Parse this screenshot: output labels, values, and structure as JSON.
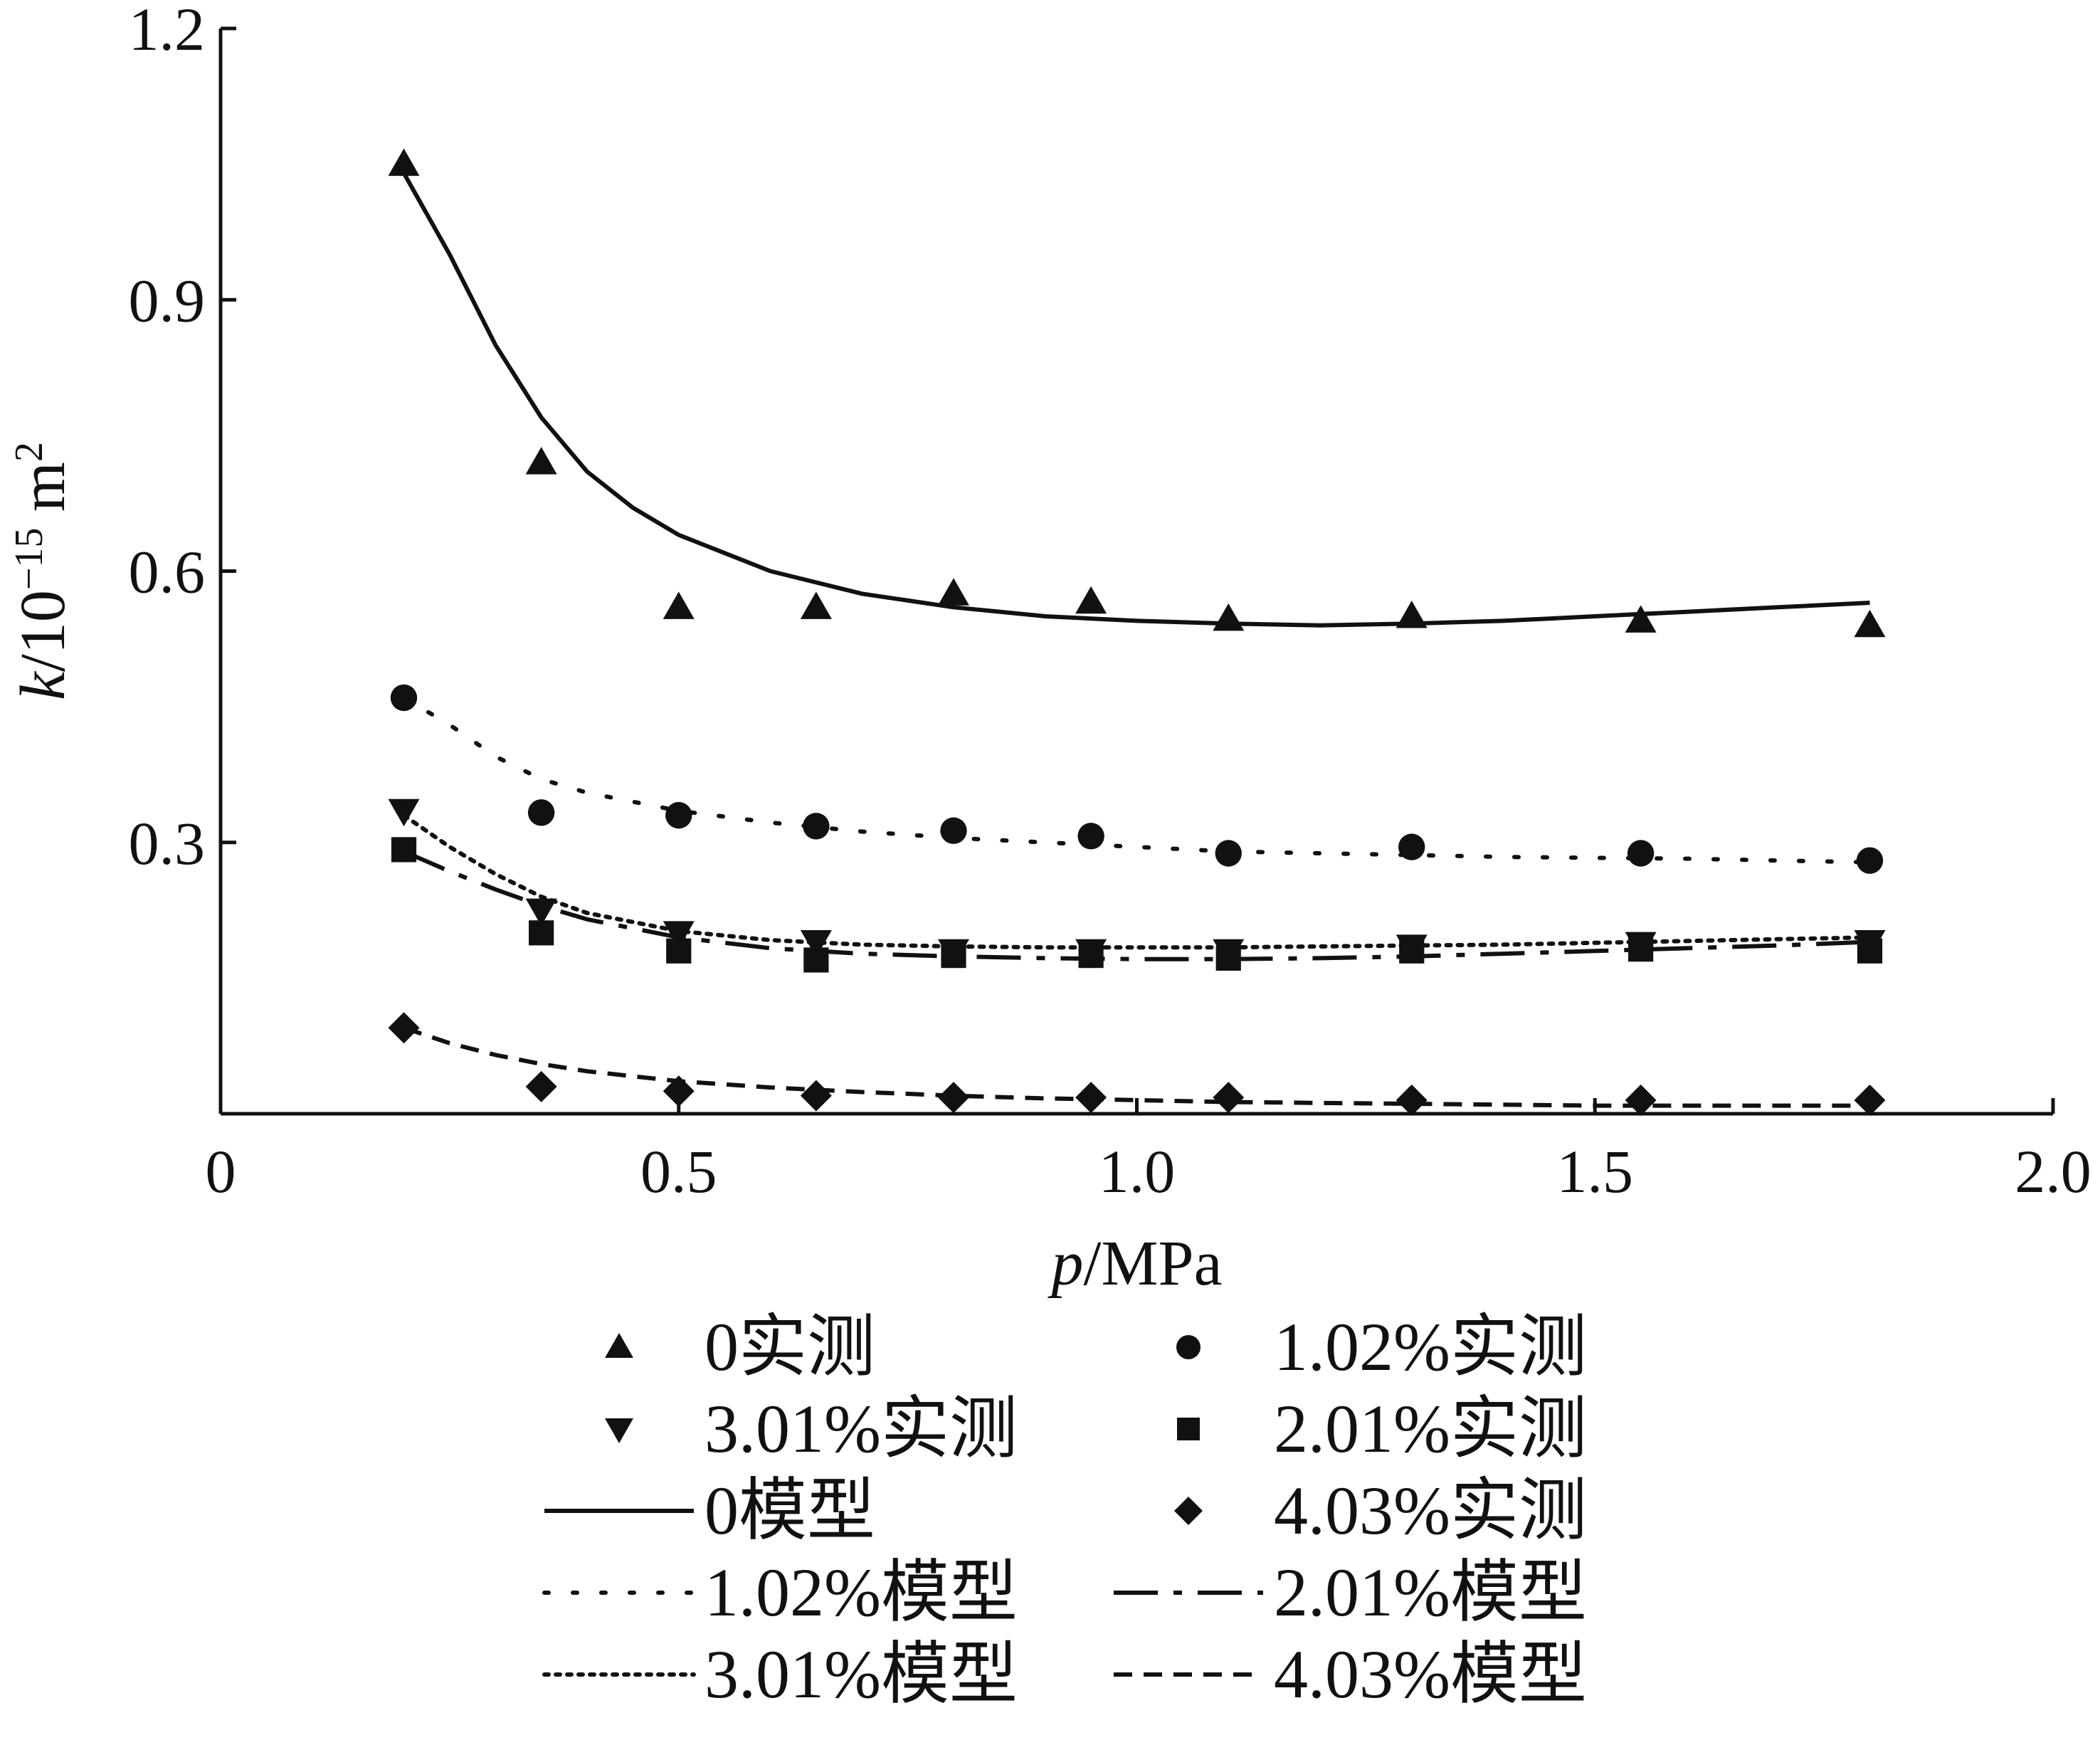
{
  "chart_data": {
    "type": "scatter",
    "x_axis": {
      "label_var": "p",
      "label_unit": "/MPa",
      "ticks": [
        "0",
        "0.5",
        "1.0",
        "1.5",
        "2.0"
      ],
      "tick_values": [
        0,
        0.5,
        1.0,
        1.5,
        2.0
      ],
      "range": [
        0,
        2.0
      ]
    },
    "y_axis": {
      "label_var": "k",
      "label_unit": "/10",
      "label_exp": "−15",
      "label_unit2": " m",
      "label_exp2": "2",
      "ticks": [
        "0.3",
        "0.6",
        "0.9",
        "1.2"
      ],
      "tick_values": [
        0.3,
        0.6,
        0.9,
        1.2
      ],
      "range": [
        0,
        1.2
      ]
    },
    "grid": false,
    "legend_position": "bottom",
    "series": [
      {
        "name": "0实测",
        "kind": "measured",
        "marker": "triangle-up",
        "x": [
          0.2,
          0.35,
          0.5,
          0.65,
          0.8,
          0.95,
          1.1,
          1.3,
          1.55,
          1.8
        ],
        "y": [
          1.05,
          0.72,
          0.56,
          0.56,
          0.575,
          0.566,
          0.547,
          0.55,
          0.545,
          0.54
        ]
      },
      {
        "name": "1.02%实测",
        "kind": "measured",
        "marker": "circle",
        "x": [
          0.2,
          0.35,
          0.5,
          0.65,
          0.8,
          0.95,
          1.1,
          1.3,
          1.55,
          1.8
        ],
        "y": [
          0.46,
          0.333,
          0.33,
          0.318,
          0.313,
          0.307,
          0.288,
          0.295,
          0.288,
          0.28
        ]
      },
      {
        "name": "2.01%实测",
        "kind": "measured",
        "marker": "square",
        "x": [
          0.2,
          0.35,
          0.5,
          0.65,
          0.8,
          0.95,
          1.1,
          1.3,
          1.55,
          1.8
        ],
        "y": [
          0.292,
          0.2,
          0.18,
          0.17,
          0.175,
          0.175,
          0.172,
          0.18,
          0.182,
          0.18
        ]
      },
      {
        "name": "3.01%实测",
        "kind": "measured",
        "marker": "triangle-down",
        "x": [
          0.2,
          0.35,
          0.5,
          0.65,
          0.8,
          0.95,
          1.1,
          1.3,
          1.55,
          1.8
        ],
        "y": [
          0.335,
          0.225,
          0.2,
          0.19,
          0.18,
          0.18,
          0.18,
          0.185,
          0.188,
          0.19
        ]
      },
      {
        "name": "4.03%实测",
        "kind": "measured",
        "marker": "diamond",
        "x": [
          0.2,
          0.35,
          0.5,
          0.65,
          0.8,
          0.95,
          1.1,
          1.3,
          1.55,
          1.8
        ],
        "y": [
          0.095,
          0.03,
          0.025,
          0.02,
          0.018,
          0.018,
          0.018,
          0.015,
          0.015,
          0.015
        ]
      },
      {
        "name": "0模型",
        "kind": "model",
        "line": "solid",
        "x": [
          0.2,
          0.25,
          0.3,
          0.35,
          0.4,
          0.45,
          0.5,
          0.6,
          0.7,
          0.8,
          0.9,
          1.0,
          1.1,
          1.2,
          1.3,
          1.4,
          1.5,
          1.6,
          1.7,
          1.8
        ],
        "y": [
          1.04,
          0.95,
          0.85,
          0.77,
          0.71,
          0.67,
          0.64,
          0.6,
          0.575,
          0.56,
          0.55,
          0.545,
          0.542,
          0.54,
          0.542,
          0.545,
          0.55,
          0.555,
          0.56,
          0.565
        ]
      },
      {
        "name": "1.02%模型",
        "kind": "model",
        "line": "sparse-dot",
        "x": [
          0.2,
          0.25,
          0.3,
          0.35,
          0.4,
          0.5,
          0.6,
          0.7,
          0.8,
          0.9,
          1.0,
          1.1,
          1.2,
          1.3,
          1.4,
          1.5,
          1.6,
          1.7,
          1.8
        ],
        "y": [
          0.46,
          0.43,
          0.395,
          0.37,
          0.355,
          0.335,
          0.322,
          0.312,
          0.305,
          0.3,
          0.295,
          0.29,
          0.288,
          0.286,
          0.284,
          0.283,
          0.282,
          0.28,
          0.278
        ]
      },
      {
        "name": "2.01%模型",
        "kind": "model",
        "line": "long-dash",
        "x": [
          0.2,
          0.25,
          0.3,
          0.35,
          0.4,
          0.5,
          0.6,
          0.7,
          0.8,
          0.9,
          1.0,
          1.1,
          1.2,
          1.3,
          1.4,
          1.5,
          1.6,
          1.7,
          1.8
        ],
        "y": [
          0.29,
          0.268,
          0.248,
          0.23,
          0.215,
          0.195,
          0.183,
          0.177,
          0.174,
          0.172,
          0.171,
          0.171,
          0.172,
          0.174,
          0.177,
          0.18,
          0.183,
          0.186,
          0.19
        ]
      },
      {
        "name": "3.01%模型",
        "kind": "model",
        "line": "dense-dot",
        "x": [
          0.2,
          0.25,
          0.3,
          0.35,
          0.4,
          0.5,
          0.6,
          0.7,
          0.8,
          0.9,
          1.0,
          1.1,
          1.2,
          1.3,
          1.4,
          1.5,
          1.6,
          1.7,
          1.8
        ],
        "y": [
          0.33,
          0.295,
          0.265,
          0.24,
          0.222,
          0.202,
          0.192,
          0.187,
          0.185,
          0.184,
          0.184,
          0.184,
          0.185,
          0.186,
          0.187,
          0.189,
          0.191,
          0.193,
          0.195
        ]
      },
      {
        "name": "4.03%模型",
        "kind": "model",
        "line": "short-dash",
        "x": [
          0.2,
          0.25,
          0.3,
          0.35,
          0.4,
          0.5,
          0.6,
          0.7,
          0.8,
          0.9,
          1.0,
          1.1,
          1.2,
          1.3,
          1.4,
          1.5,
          1.6,
          1.7,
          1.8
        ],
        "y": [
          0.095,
          0.078,
          0.065,
          0.055,
          0.047,
          0.036,
          0.029,
          0.024,
          0.02,
          0.017,
          0.015,
          0.013,
          0.012,
          0.011,
          0.01,
          0.009,
          0.009,
          0.009,
          0.009
        ]
      }
    ],
    "legend_order": [
      0,
      3,
      5,
      6,
      8,
      1,
      2,
      4,
      7,
      9
    ]
  }
}
